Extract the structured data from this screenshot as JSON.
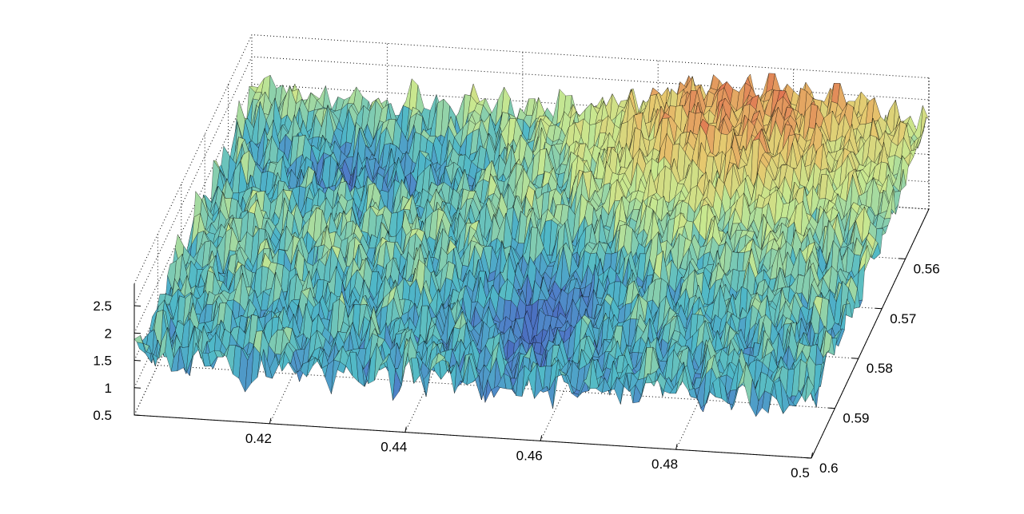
{
  "chart_data": {
    "type": "surface",
    "title": "",
    "xlabel": "",
    "ylabel": "",
    "zlabel": "",
    "grid": true,
    "colormap": "jet (muted, faceted)",
    "x_range": [
      0.4,
      0.5
    ],
    "y_range": [
      0.55,
      0.6
    ],
    "z_range": [
      0.5,
      2.9
    ],
    "x_ticks": [
      {
        "value": 0.42,
        "label": "0.42"
      },
      {
        "value": 0.44,
        "label": "0.44"
      },
      {
        "value": 0.46,
        "label": "0.46"
      },
      {
        "value": 0.48,
        "label": "0.48"
      },
      {
        "value": 0.5,
        "label": "0.5"
      }
    ],
    "y_ticks": [
      {
        "value": 0.56,
        "label": "0.56"
      },
      {
        "value": 0.57,
        "label": "0.57"
      },
      {
        "value": 0.58,
        "label": "0.58"
      },
      {
        "value": 0.59,
        "label": "0.59"
      },
      {
        "value": 0.6,
        "label": "0.6"
      }
    ],
    "z_ticks": [
      {
        "value": 0.5,
        "label": "0.5"
      },
      {
        "value": 1.0,
        "label": "1"
      },
      {
        "value": 1.5,
        "label": "1.5"
      },
      {
        "value": 2.0,
        "label": "2"
      },
      {
        "value": 2.5,
        "label": "2.5"
      }
    ],
    "surface_summary": {
      "description": "rough fractal terrain",
      "approx_min": 0.6,
      "approx_max": 2.8,
      "high_region": {
        "x": [
          0.46,
          0.49
        ],
        "y": [
          0.55,
          0.57
        ]
      },
      "low_region": {
        "x": [
          0.4,
          0.44
        ],
        "y": [
          0.55,
          0.565
        ]
      }
    },
    "colors": {
      "low": "#2f3f8f",
      "mid_low": "#4fb8c8",
      "mid": "#c8e890",
      "high": "#e07050",
      "edge": "#000000"
    }
  }
}
